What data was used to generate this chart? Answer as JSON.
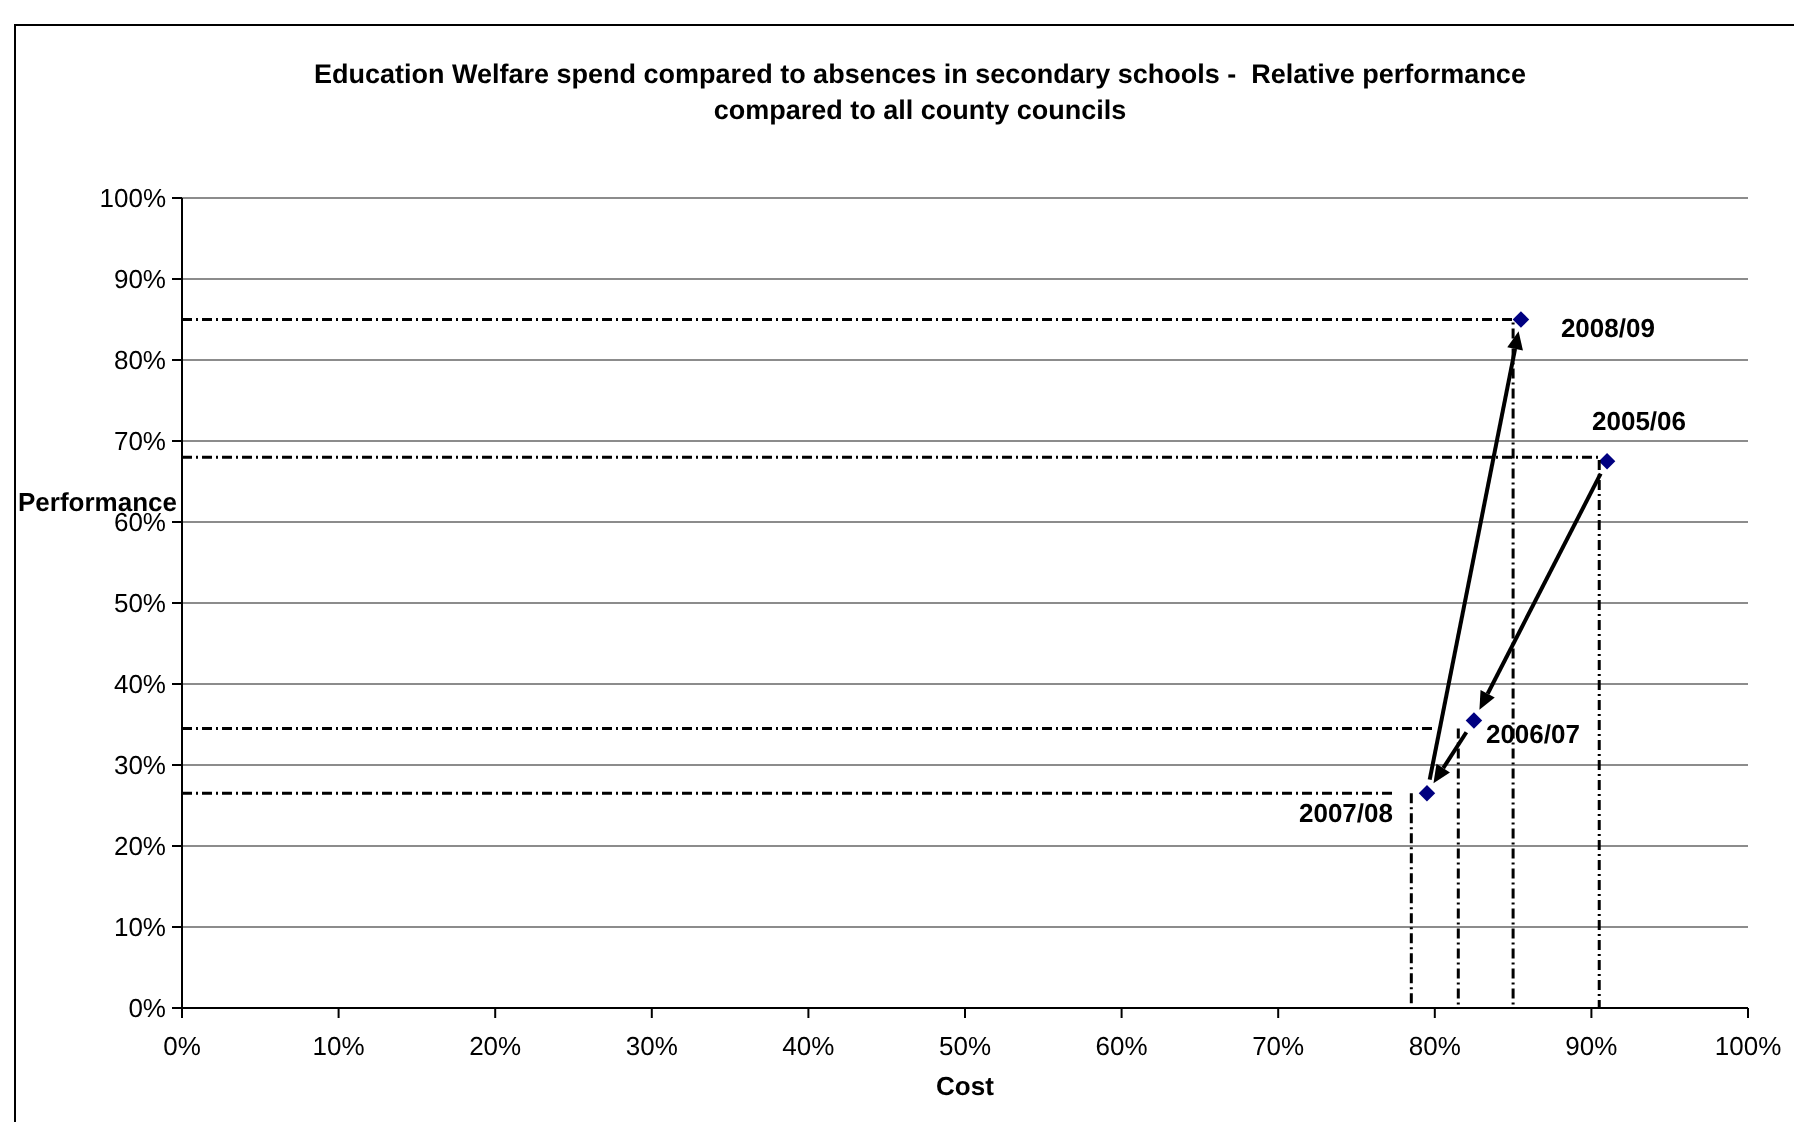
{
  "chart_data": {
    "type": "scatter",
    "title": "Education Welfare spend compared to absences in secondary schools -  Relative performance compared to all county councils",
    "xlabel": "Cost",
    "ylabel": "Performance",
    "xlim": [
      0,
      100
    ],
    "ylim": [
      0,
      100
    ],
    "xticks": [
      {
        "value": 0,
        "label": "0%"
      },
      {
        "value": 10,
        "label": "10%"
      },
      {
        "value": 20,
        "label": "20%"
      },
      {
        "value": 30,
        "label": "30%"
      },
      {
        "value": 40,
        "label": "40%"
      },
      {
        "value": 50,
        "label": "50%"
      },
      {
        "value": 60,
        "label": "60%"
      },
      {
        "value": 70,
        "label": "70%"
      },
      {
        "value": 80,
        "label": "80%"
      },
      {
        "value": 90,
        "label": "90%"
      },
      {
        "value": 100,
        "label": "100%"
      }
    ],
    "yticks": [
      {
        "value": 0,
        "label": "0%"
      },
      {
        "value": 10,
        "label": "10%"
      },
      {
        "value": 20,
        "label": "20%"
      },
      {
        "value": 30,
        "label": "30%"
      },
      {
        "value": 40,
        "label": "40%"
      },
      {
        "value": 50,
        "label": "50%"
      },
      {
        "value": 60,
        "label": "60%"
      },
      {
        "value": 70,
        "label": "70%"
      },
      {
        "value": 80,
        "label": "80%"
      },
      {
        "value": 90,
        "label": "90%"
      },
      {
        "value": 100,
        "label": "100%"
      }
    ],
    "grid": "y",
    "marker": "diamond",
    "line_style": "dashed",
    "series": [
      {
        "color": "#000080",
        "x": [
          91,
          82.5,
          79.5,
          85.5
        ],
        "values": [
          67.5,
          35.5,
          26.5,
          85
        ]
      },
      {
        "type": "line",
        "color": "#000000",
        "marker": "none",
        "x": [
          0,
          90.5,
          90.5
        ],
        "values": [
          68,
          68,
          0
        ]
      },
      {
        "type": "line",
        "color": "#000000",
        "marker": "none",
        "x": [
          0,
          80,
          81,
          81.5,
          81.5
        ],
        "values": [
          34.5,
          34.5,
          null,
          34.5,
          0
        ]
      },
      {
        "type": "line",
        "color": "#000000",
        "marker": "none",
        "x": [
          0,
          77.5,
          78,
          78.5,
          78.5
        ],
        "values": [
          26.5,
          26.5,
          null,
          26.5,
          0
        ]
      },
      {
        "type": "line",
        "color": "#000000",
        "marker": "none",
        "x": [
          0,
          85,
          85
        ],
        "values": [
          85,
          85,
          0
        ]
      }
    ],
    "annotations": [
      {
        "text": "2005/06",
        "x": 91,
        "y": 67.5
      },
      {
        "text": "2006/07",
        "x": 82.5,
        "y": 35.5
      },
      {
        "text": "2007/08",
        "x": 79.5,
        "y": 26.5
      },
      {
        "text": "2008/09",
        "x": 85.5,
        "y": 85
      }
    ]
  }
}
